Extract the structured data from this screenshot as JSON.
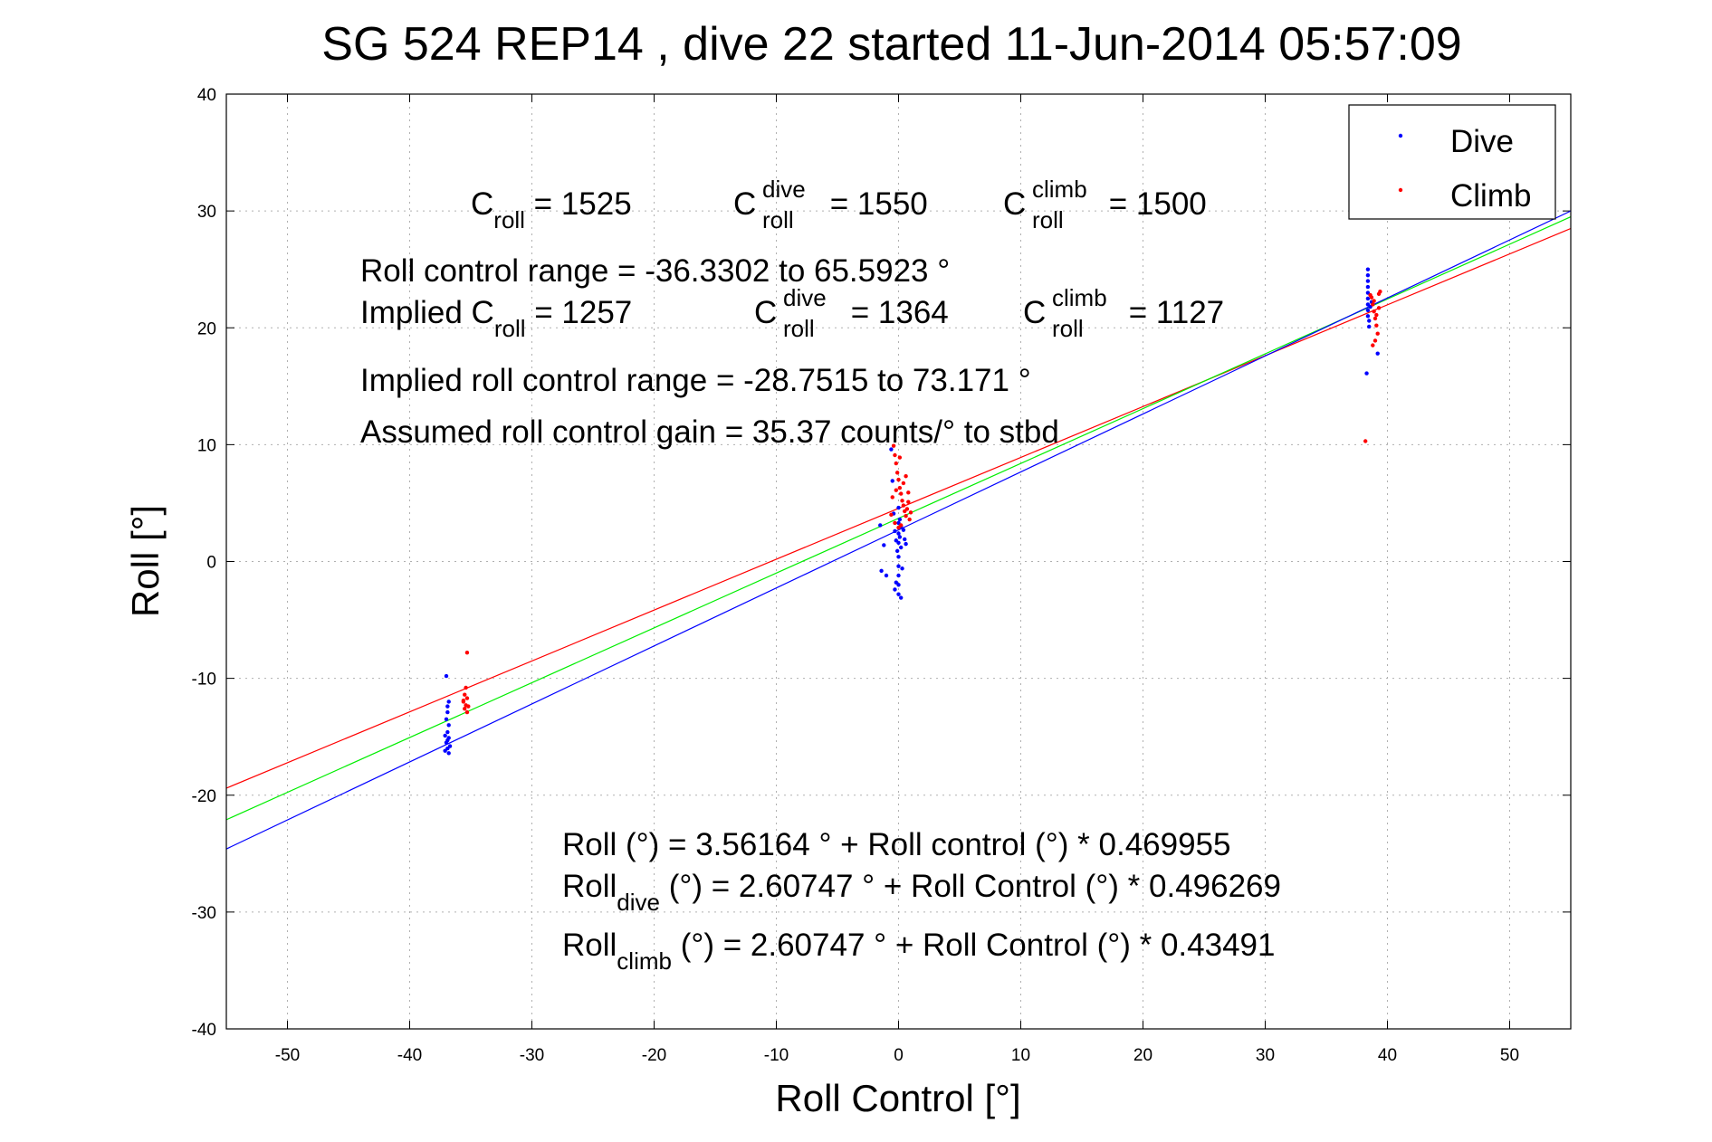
{
  "chart_data": {
    "type": "scatter",
    "title": "SG 524   REP14  , dive 22 started 11-Jun-2014 05:57:09",
    "xlabel": "Roll Control [°]",
    "ylabel": "Roll [°]",
    "xlim": [
      -55,
      55
    ],
    "ylim": [
      -40,
      40
    ],
    "xticks": [
      -50,
      -40,
      -30,
      -20,
      -10,
      0,
      10,
      20,
      30,
      40,
      50
    ],
    "yticks": [
      -40,
      -30,
      -20,
      -10,
      0,
      10,
      20,
      30,
      40
    ],
    "xtick_labels": [
      "-50",
      "-40",
      "-30",
      "-20",
      "-10",
      "0",
      "10",
      "20",
      "30",
      "40",
      "50"
    ],
    "ytick_labels": [
      "-40",
      "-30",
      "-20",
      "-10",
      "0",
      "10",
      "20",
      "30",
      "40"
    ],
    "grid": true,
    "legend_position": "top-right",
    "series": [
      {
        "name": "Dive",
        "color": "#0000ff",
        "kind": "points",
        "points": [
          [
            -37.0,
            -9.8
          ],
          [
            -36.9,
            -12.4
          ],
          [
            -36.8,
            -12.0
          ],
          [
            -36.9,
            -12.9
          ],
          [
            -37.0,
            -13.5
          ],
          [
            -36.8,
            -14.0
          ],
          [
            -36.9,
            -14.6
          ],
          [
            -37.1,
            -14.9
          ],
          [
            -36.8,
            -15.1
          ],
          [
            -36.9,
            -15.3
          ],
          [
            -37.0,
            -15.5
          ],
          [
            -36.7,
            -15.8
          ],
          [
            -36.9,
            -16.0
          ],
          [
            -37.1,
            -16.2
          ],
          [
            -36.8,
            -16.4
          ],
          [
            -1.5,
            3.1
          ],
          [
            -1.2,
            1.4
          ],
          [
            -1.4,
            -0.8
          ],
          [
            -1.0,
            -1.2
          ],
          [
            -0.6,
            9.6
          ],
          [
            -0.5,
            6.9
          ],
          [
            -0.4,
            4.1
          ],
          [
            -0.3,
            2.6
          ],
          [
            -0.2,
            1.8
          ],
          [
            -0.1,
            0.9
          ],
          [
            0.0,
            4.6
          ],
          [
            0.0,
            3.3
          ],
          [
            0.0,
            2.4
          ],
          [
            0.0,
            1.6
          ],
          [
            0.0,
            0.4
          ],
          [
            0.0,
            -0.4
          ],
          [
            0.0,
            -1.2
          ],
          [
            0.0,
            -2.0
          ],
          [
            0.0,
            -2.8
          ],
          [
            0.1,
            2.1
          ],
          [
            0.2,
            1.2
          ],
          [
            0.2,
            3.0
          ],
          [
            0.3,
            -0.6
          ],
          [
            0.4,
            2.7
          ],
          [
            0.5,
            1.9
          ],
          [
            0.6,
            1.5
          ],
          [
            -0.2,
            -1.8
          ],
          [
            0.1,
            3.6
          ],
          [
            -0.3,
            -2.4
          ],
          [
            0.2,
            -3.1
          ],
          [
            38.4,
            25.0
          ],
          [
            38.4,
            24.5
          ],
          [
            38.4,
            24.0
          ],
          [
            38.4,
            23.5
          ],
          [
            38.4,
            23.0
          ],
          [
            38.4,
            22.5
          ],
          [
            38.4,
            22.0
          ],
          [
            38.4,
            21.5
          ],
          [
            38.4,
            21.0
          ],
          [
            38.5,
            20.6
          ],
          [
            38.5,
            20.1
          ],
          [
            38.6,
            21.8
          ],
          [
            38.7,
            22.2
          ],
          [
            38.3,
            16.1
          ],
          [
            39.2,
            17.8
          ]
        ]
      },
      {
        "name": "Climb",
        "color": "#ff0000",
        "kind": "points",
        "points": [
          [
            -35.3,
            -7.8
          ],
          [
            -35.4,
            -10.8
          ],
          [
            -35.5,
            -11.4
          ],
          [
            -35.3,
            -11.7
          ],
          [
            -35.6,
            -12.0
          ],
          [
            -35.4,
            -12.3
          ],
          [
            -35.5,
            -12.6
          ],
          [
            -35.3,
            -12.9
          ],
          [
            -35.6,
            -11.9
          ],
          [
            -35.2,
            -12.4
          ],
          [
            -0.4,
            9.9
          ],
          [
            -0.3,
            9.1
          ],
          [
            -0.2,
            8.4
          ],
          [
            -0.1,
            7.6
          ],
          [
            0.0,
            7.0
          ],
          [
            0.1,
            6.3
          ],
          [
            0.2,
            5.8
          ],
          [
            0.3,
            5.2
          ],
          [
            0.4,
            4.8
          ],
          [
            0.5,
            4.3
          ],
          [
            0.6,
            3.9
          ],
          [
            0.7,
            4.5
          ],
          [
            0.8,
            5.1
          ],
          [
            0.9,
            3.6
          ],
          [
            1.0,
            4.2
          ],
          [
            -0.5,
            5.5
          ],
          [
            -0.6,
            4.0
          ],
          [
            -0.3,
            3.3
          ],
          [
            0.0,
            2.9
          ],
          [
            0.2,
            3.1
          ],
          [
            0.4,
            6.7
          ],
          [
            0.6,
            7.3
          ],
          [
            0.8,
            5.9
          ],
          [
            -0.2,
            6.1
          ],
          [
            0.1,
            8.9
          ],
          [
            38.2,
            10.3
          ],
          [
            38.7,
            22.6
          ],
          [
            38.8,
            22.0
          ],
          [
            38.9,
            21.4
          ],
          [
            39.0,
            20.8
          ],
          [
            39.1,
            20.2
          ],
          [
            39.2,
            19.5
          ],
          [
            39.3,
            22.9
          ],
          [
            39.4,
            23.1
          ],
          [
            38.9,
            22.3
          ],
          [
            39.0,
            18.9
          ],
          [
            38.8,
            18.5
          ],
          [
            39.1,
            21.1
          ],
          [
            39.3,
            21.7
          ],
          [
            38.6,
            22.8
          ]
        ]
      },
      {
        "name": "",
        "color": "#ff0000",
        "kind": "fit_line",
        "x": [
          -55,
          55
        ],
        "y": [
          -19.4,
          28.5
        ]
      },
      {
        "name": "",
        "color": "#00ee00",
        "kind": "fit_line",
        "x": [
          -55,
          55
        ],
        "y": [
          -22.1,
          29.5
        ]
      },
      {
        "name": "",
        "color": "#0000ff",
        "kind": "fit_line",
        "x": [
          -55,
          55
        ],
        "y": [
          -24.6,
          30.0
        ]
      }
    ],
    "annotations": [
      {
        "key": "c_roll",
        "main": "C",
        "sub": "roll",
        "text": " = 1525"
      },
      {
        "key": "c_roll_dive",
        "main": "C",
        "sup": "dive",
        "sub": "roll",
        "text": " = 1550"
      },
      {
        "key": "c_roll_climb",
        "main": "C",
        "sup": "climb",
        "sub": "roll",
        "text": " = 1500"
      },
      {
        "key": "range",
        "text": "Roll control range = -36.3302 to 65.5923 °"
      },
      {
        "key": "implied_c_roll",
        "main": "Implied C",
        "sub": "roll",
        "text": " = 1257"
      },
      {
        "key": "implied_c_dive",
        "main": "C",
        "sup": "dive",
        "sub": "roll",
        "text": " = 1364"
      },
      {
        "key": "implied_c_climb",
        "main": "C",
        "sup": "climb",
        "sub": "roll",
        "text": " = 1127"
      },
      {
        "key": "implied_range",
        "text": "Implied roll control range = -28.7515 to 73.171 °"
      },
      {
        "key": "gain",
        "text": "Assumed roll control gain = 35.37 counts/° to stbd"
      },
      {
        "key": "fit_all",
        "text": "Roll (°) = 3.56164 ° + Roll control (°) * 0.469955"
      },
      {
        "key": "fit_dive",
        "main": "Roll",
        "sub": "dive",
        "text": " (°) = 2.60747 ° + Roll Control (°) * 0.496269"
      },
      {
        "key": "fit_climb",
        "main": "Roll",
        "sub": "climb",
        "text": " (°) = 2.60747 ° + Roll Control (°) * 0.43491"
      }
    ]
  }
}
